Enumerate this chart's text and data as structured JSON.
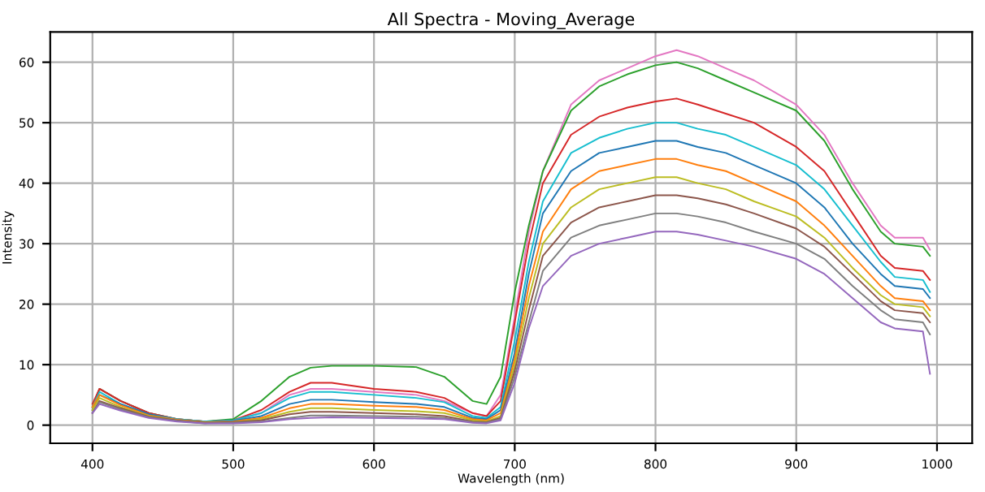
{
  "chart_data": {
    "type": "line",
    "title": "All Spectra - Moving_Average",
    "xlabel": "Wavelength (nm)",
    "ylabel": "Intensity",
    "x": [
      400,
      405,
      420,
      440,
      460,
      480,
      500,
      520,
      540,
      555,
      570,
      600,
      630,
      650,
      670,
      680,
      690,
      700,
      710,
      720,
      740,
      760,
      780,
      800,
      815,
      830,
      850,
      870,
      900,
      920,
      940,
      960,
      970,
      990,
      995
    ],
    "series": [
      {
        "color": "#e377c2",
        "values": [
          3,
          6,
          4,
          2,
          1,
          0.6,
          0.8,
          2,
          5,
          6,
          6,
          5.5,
          5,
          4,
          2,
          1.5,
          5,
          18,
          32,
          42,
          53,
          57,
          59,
          61,
          62,
          61,
          59,
          57,
          53,
          48,
          40,
          33,
          31,
          31,
          29
        ]
      },
      {
        "color": "#2ca02c",
        "values": [
          3,
          6,
          4,
          2,
          1,
          0.6,
          1,
          4,
          8,
          9.5,
          9.8,
          9.8,
          9.6,
          8,
          4,
          3.5,
          8,
          22,
          33,
          42,
          52,
          56,
          58,
          59.5,
          60,
          59,
          57,
          55,
          52,
          47,
          39,
          32,
          30,
          29.5,
          28
        ]
      },
      {
        "color": "#d62728",
        "values": [
          3.5,
          6,
          4,
          2,
          1,
          0.6,
          0.8,
          2.5,
          5.5,
          7,
          7,
          6,
          5.5,
          4.5,
          2,
          1.5,
          4,
          17,
          30,
          40,
          48,
          51,
          52.5,
          53.5,
          54,
          53,
          51.5,
          50,
          46,
          42,
          35,
          28,
          26,
          25.5,
          24
        ]
      },
      {
        "color": "#17becf",
        "values": [
          3,
          5.5,
          3.5,
          1.8,
          1,
          0.6,
          0.8,
          2,
          4.5,
          5.5,
          5.5,
          5,
          4.5,
          3.8,
          1.5,
          1.2,
          3,
          14,
          27,
          37,
          45,
          47.5,
          49,
          50,
          50,
          49,
          48,
          46,
          43,
          39,
          33,
          27,
          24.5,
          24,
          22
        ]
      },
      {
        "color": "#1f77b4",
        "values": [
          2.5,
          5,
          3.5,
          1.8,
          0.9,
          0.5,
          0.7,
          1.5,
          3.5,
          4.2,
          4.2,
          3.8,
          3.5,
          3,
          1.2,
          1,
          2.5,
          12,
          25,
          35,
          42,
          45,
          46,
          47,
          47,
          46,
          45,
          43,
          40,
          36,
          30,
          25,
          23,
          22.5,
          21
        ]
      },
      {
        "color": "#ff7f0e",
        "values": [
          3,
          5,
          3.3,
          1.6,
          0.9,
          0.5,
          0.6,
          1.2,
          2.8,
          3.5,
          3.5,
          3.2,
          3,
          2.5,
          1,
          0.8,
          2,
          11,
          23,
          32,
          39,
          42,
          43,
          44,
          44,
          43,
          42,
          40,
          37,
          33,
          28,
          23,
          21,
          20.5,
          19
        ]
      },
      {
        "color": "#bcbd22",
        "values": [
          2.5,
          4.5,
          3,
          1.5,
          0.8,
          0.4,
          0.5,
          1,
          2.2,
          2.8,
          2.8,
          2.5,
          2.3,
          2,
          0.8,
          0.6,
          1.5,
          10,
          21,
          30,
          36,
          39,
          40,
          41,
          41,
          40,
          39,
          37,
          34.5,
          31,
          26,
          21.5,
          20,
          19.5,
          18
        ]
      },
      {
        "color": "#8c564b",
        "values": [
          2,
          4,
          2.8,
          1.4,
          0.8,
          0.4,
          0.5,
          0.8,
          1.8,
          2.2,
          2.2,
          2,
          1.8,
          1.5,
          0.6,
          0.5,
          1.2,
          9,
          19,
          28,
          33.5,
          36,
          37,
          38,
          38,
          37.5,
          36.5,
          35,
          32.5,
          29.5,
          25,
          20.5,
          19,
          18.5,
          17
        ]
      },
      {
        "color": "#7f7f7f",
        "values": [
          2,
          3.8,
          2.6,
          1.3,
          0.7,
          0.3,
          0.4,
          0.6,
          1.2,
          1.6,
          1.6,
          1.5,
          1.4,
          1.2,
          0.5,
          0.4,
          1,
          8,
          17,
          25.5,
          31,
          33,
          34,
          35,
          35,
          34.5,
          33.5,
          32,
          30,
          27.5,
          23,
          19,
          17.5,
          17,
          15
        ]
      },
      {
        "color": "#9467bd",
        "values": [
          2,
          3.5,
          2.4,
          1.2,
          0.6,
          0.3,
          0.3,
          0.5,
          1,
          1.2,
          1.3,
          1.2,
          1.1,
          1,
          0.4,
          0.3,
          0.8,
          7,
          16,
          23,
          28,
          30,
          31,
          32,
          32,
          31.5,
          30.5,
          29.5,
          27.5,
          25,
          21,
          17,
          16,
          15.5,
          8.5
        ]
      }
    ],
    "xlim": [
      370,
      1025
    ],
    "ylim": [
      -3,
      65
    ],
    "xticks": [
      400,
      500,
      600,
      700,
      800,
      900,
      1000
    ],
    "yticks": [
      0,
      10,
      20,
      30,
      40,
      50,
      60
    ],
    "grid": true,
    "line_style": "solid"
  }
}
